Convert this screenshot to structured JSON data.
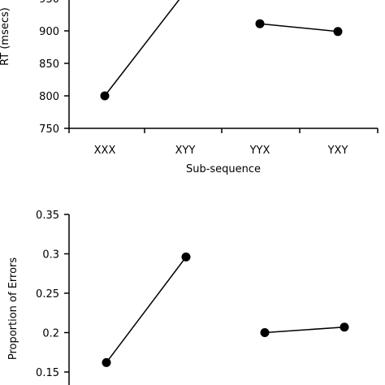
{
  "chart_data": [
    {
      "type": "line",
      "categories": [
        "XXX",
        "XYY",
        "YYX",
        "YXY"
      ],
      "series": [
        {
          "segment": [
            {
              "category": "XXX",
              "value": 800
            },
            {
              "category": "XYY",
              "value": 960
            }
          ]
        },
        {
          "segment": [
            {
              "category": "YYX",
              "value": 911
            },
            {
              "category": "YXY",
              "value": 899
            }
          ]
        }
      ],
      "y_ticks": [
        750,
        800,
        850,
        900,
        950
      ],
      "y_tick_labels": [
        "750",
        "800",
        "850",
        "900",
        "950"
      ],
      "xlabel": "Sub-sequence",
      "ylabel": "RT (msecs)",
      "ylim": [
        750,
        960
      ]
    },
    {
      "type": "line",
      "categories": [
        "XXX",
        "XYY",
        "YYX",
        "YXY"
      ],
      "series": [
        {
          "segment": [
            {
              "category": "XXX",
              "value": 0.162
            },
            {
              "category": "XYY",
              "value": 0.296
            }
          ]
        },
        {
          "segment": [
            {
              "category": "YYX",
              "value": 0.2
            },
            {
              "category": "YXY",
              "value": 0.207
            }
          ]
        }
      ],
      "y_ticks": [
        0.15,
        0.2,
        0.25,
        0.3,
        0.35
      ],
      "y_tick_labels": [
        "0.15",
        "0.2",
        "0.25",
        "0.3",
        "0.35"
      ],
      "xlabel": "",
      "ylabel": "Proportion of Errors",
      "ylim": [
        0.15,
        0.35
      ]
    }
  ]
}
